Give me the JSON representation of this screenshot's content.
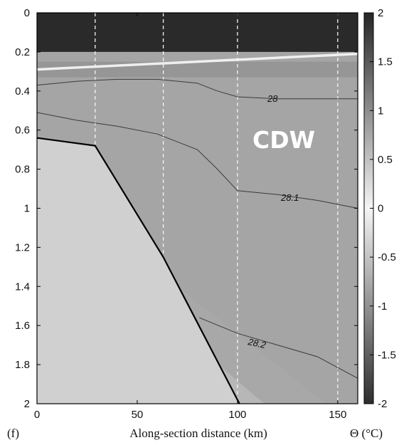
{
  "panel_label": "(f)",
  "unit_label": "Θ (°C)",
  "water_mass_label": "CDW",
  "colors": {
    "dark": "#262626",
    "light": "#dcdcdc",
    "seabed": "#d0d0d0",
    "contour": "#3a3a3a",
    "reference_line": "#f4f4f4"
  },
  "chart_data": {
    "type": "heatmap",
    "title": "",
    "xlabel": "Along-section distance (km)",
    "ylabel": "",
    "xlim": [
      0,
      160
    ],
    "ylim": [
      2,
      0
    ],
    "x_ticks": [
      "0",
      "50",
      "100",
      "150"
    ],
    "y_ticks": [
      "0",
      "0.2",
      "0.4",
      "0.6",
      "0.8",
      "1",
      "1.2",
      "1.4",
      "1.6",
      "1.8",
      "2"
    ],
    "colorbar": {
      "range": [
        -2,
        2
      ],
      "ticks": [
        "2",
        "1.5",
        "1",
        "0.5",
        "0",
        "-0.5",
        "-1",
        "-1.5",
        "-2"
      ]
    },
    "vertical_reference_lines_km": [
      29,
      63,
      100,
      150
    ],
    "seabed": {
      "x": [
        0,
        29,
        63,
        101
      ],
      "y": [
        0.64,
        0.68,
        1.25,
        2.0
      ]
    },
    "contours": [
      {
        "label": "28",
        "x": [
          0,
          20,
          40,
          60,
          80,
          90,
          100,
          120,
          140,
          160
        ],
        "y": [
          0.37,
          0.35,
          0.34,
          0.34,
          0.36,
          0.4,
          0.43,
          0.44,
          0.44,
          0.44
        ]
      },
      {
        "label": "28.1",
        "x": [
          0,
          20,
          40,
          60,
          80,
          90,
          100,
          120,
          140,
          160
        ],
        "y": [
          0.51,
          0.55,
          0.58,
          0.62,
          0.7,
          0.8,
          0.91,
          0.93,
          0.96,
          1.0
        ]
      },
      {
        "label": "28.2",
        "x": [
          81,
          100,
          120,
          140,
          160
        ],
        "y": [
          1.56,
          1.64,
          1.7,
          1.76,
          1.87
        ]
      }
    ]
  }
}
